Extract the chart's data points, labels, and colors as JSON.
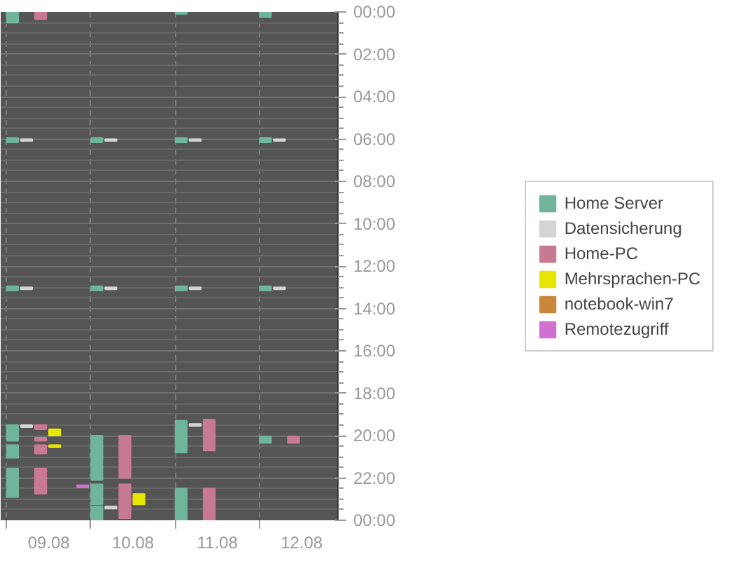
{
  "chart_data": {
    "type": "bar",
    "categories": [
      "09.08",
      "10.08",
      "11.08",
      "12.08"
    ],
    "ylim": [
      24,
      0
    ],
    "yticks": [
      {
        "value": 0,
        "label": "00:00"
      },
      {
        "value": 2,
        "label": "02:00"
      },
      {
        "value": 4,
        "label": "04:00"
      },
      {
        "value": 6,
        "label": "06:00"
      },
      {
        "value": 8,
        "label": "08:00"
      },
      {
        "value": 10,
        "label": "10:00"
      },
      {
        "value": 12,
        "label": "12:00"
      },
      {
        "value": 14,
        "label": "14:00"
      },
      {
        "value": 16,
        "label": "16:00"
      },
      {
        "value": 18,
        "label": "18:00"
      },
      {
        "value": 20,
        "label": "20:00"
      },
      {
        "value": 22,
        "label": "22:00"
      },
      {
        "value": 24,
        "label": "00:00"
      }
    ],
    "grid": true,
    "legend": "right",
    "series": [
      {
        "name": "Home Server",
        "color": "#6fb59a",
        "x": [
          "09.08",
          "09.08",
          "09.08",
          "09.08",
          "09.08",
          "09.08",
          "10.08",
          "10.08",
          "10.08",
          "10.08",
          "10.08",
          "11.08",
          "11.08",
          "11.08",
          "11.08",
          "11.08",
          "12.08",
          "12.08",
          "12.08",
          "12.08"
        ],
        "base": [
          0,
          5.95,
          12.95,
          19.5,
          20.45,
          21.55,
          5.95,
          12.95,
          20.0,
          22.3,
          23.35,
          0,
          5.95,
          12.95,
          19.3,
          22.5,
          0,
          5.95,
          12.95,
          20.05
        ],
        "values": [
          0.5,
          0.2,
          0.2,
          0.75,
          0.6,
          1.35,
          0.2,
          0.2,
          2.1,
          0.95,
          0.65,
          0.1,
          0.2,
          0.2,
          1.5,
          1.5,
          0.25,
          0.2,
          0.2,
          0.3
        ]
      },
      {
        "name": "Datensicherung",
        "color": "#d4d4d4",
        "x": [
          "09.08",
          "09.08",
          "09.08",
          "10.08",
          "10.08",
          "10.08",
          "11.08",
          "11.08",
          "11.08",
          "12.08",
          "12.08"
        ],
        "base": [
          6.0,
          13.0,
          19.5,
          6.0,
          13.0,
          23.35,
          6.0,
          13.0,
          19.45,
          6.0,
          13.0
        ],
        "values": [
          0.1,
          0.1,
          0.1,
          0.1,
          0.1,
          0.1,
          0.1,
          0.1,
          0.1,
          0.1,
          0.1
        ]
      },
      {
        "name": "Home-PC",
        "color": "#c87a92",
        "x": [
          "09.08",
          "09.08",
          "09.08",
          "09.08",
          "09.08",
          "10.08",
          "10.08",
          "10.08",
          "11.08",
          "11.08",
          "12.08"
        ],
        "base": [
          0,
          19.5,
          20.1,
          20.45,
          21.55,
          20.0,
          22.3,
          23.3,
          19.25,
          22.5,
          20.05
        ],
        "values": [
          0.35,
          0.2,
          0.15,
          0.4,
          1.2,
          2.0,
          1.0,
          0.6,
          1.45,
          1.5,
          0.3
        ]
      },
      {
        "name": "Mehrsprachen-PC",
        "color": "#e6e600",
        "x": [
          "09.08",
          "09.08",
          "10.08"
        ],
        "base": [
          19.7,
          20.45,
          22.75
        ],
        "values": [
          0.3,
          0.1,
          0.5
        ]
      },
      {
        "name": "notebook-win7",
        "color": "#c8873a",
        "values": [
          null,
          null,
          null,
          null
        ]
      },
      {
        "name": "Remotezugriff",
        "color": "#d070d0",
        "x": [
          "09.08"
        ],
        "base": [
          22.35
        ],
        "values": [
          0.1
        ]
      }
    ]
  }
}
